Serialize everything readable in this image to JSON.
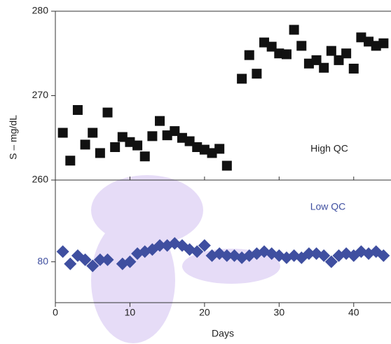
{
  "chart_data": [
    {
      "type": "scatter",
      "marker": "square",
      "color": "#111111",
      "y_label": "S – mg/dL",
      "annotation": "High QC",
      "xlim": [
        0,
        45
      ],
      "ylim": [
        260,
        280
      ],
      "yticks": [
        260,
        270,
        280
      ],
      "x": [
        1,
        2,
        3,
        4,
        5,
        6,
        7,
        8,
        9,
        10,
        11,
        12,
        13,
        14,
        15,
        16,
        17,
        18,
        19,
        20,
        21,
        22,
        23,
        25,
        26,
        27,
        28,
        29,
        30,
        31,
        32,
        33,
        34,
        35,
        36,
        37,
        38,
        39,
        40,
        41,
        42,
        43,
        44
      ],
      "values": [
        265.6,
        262.3,
        268.3,
        264.2,
        265.6,
        263.2,
        268.0,
        263.9,
        265.1,
        264.5,
        264.1,
        262.8,
        265.2,
        267.0,
        265.3,
        265.8,
        265.0,
        264.6,
        263.9,
        263.6,
        263.2,
        263.7,
        261.7,
        272.0,
        274.8,
        272.6,
        276.3,
        275.8,
        275.0,
        274.9,
        277.8,
        275.9,
        273.8,
        274.2,
        273.3,
        275.3,
        274.2,
        275.0,
        273.2,
        276.9,
        276.4,
        275.9,
        276.2
      ]
    },
    {
      "type": "scatter",
      "marker": "diamond",
      "color": "#3f4fa0",
      "annotation": "Low QC",
      "x_label": "Days",
      "xlim": [
        0,
        45
      ],
      "xticks": [
        0,
        10,
        20,
        30,
        40
      ],
      "ylim": [
        78,
        84
      ],
      "yticks": [
        80
      ],
      "x": [
        1,
        2,
        3,
        4,
        5,
        6,
        7,
        9,
        10,
        11,
        12,
        13,
        14,
        15,
        16,
        17,
        18,
        19,
        20,
        21,
        22,
        23,
        24,
        25,
        26,
        27,
        28,
        29,
        30,
        31,
        32,
        33,
        34,
        35,
        36,
        37,
        38,
        39,
        40,
        41,
        42,
        43,
        44
      ],
      "values": [
        80.5,
        79.9,
        80.3,
        80.1,
        79.8,
        80.1,
        80.1,
        79.9,
        80.0,
        80.4,
        80.5,
        80.6,
        80.8,
        80.8,
        80.9,
        80.8,
        80.6,
        80.5,
        80.8,
        80.3,
        80.4,
        80.3,
        80.3,
        80.2,
        80.3,
        80.4,
        80.5,
        80.4,
        80.3,
        80.2,
        80.3,
        80.2,
        80.4,
        80.4,
        80.3,
        80.0,
        80.3,
        80.4,
        80.3,
        80.5,
        80.4,
        80.5,
        80.3
      ]
    }
  ]
}
